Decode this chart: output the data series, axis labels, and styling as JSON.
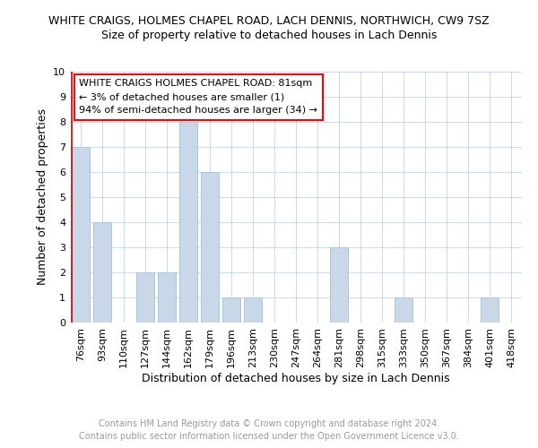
{
  "title": "WHITE CRAIGS, HOLMES CHAPEL ROAD, LACH DENNIS, NORTHWICH, CW9 7SZ",
  "subtitle": "Size of property relative to detached houses in Lach Dennis",
  "xlabel": "Distribution of detached houses by size in Lach Dennis",
  "ylabel": "Number of detached properties",
  "categories": [
    "76sqm",
    "93sqm",
    "110sqm",
    "127sqm",
    "144sqm",
    "162sqm",
    "179sqm",
    "196sqm",
    "213sqm",
    "230sqm",
    "247sqm",
    "264sqm",
    "281sqm",
    "298sqm",
    "315sqm",
    "333sqm",
    "350sqm",
    "367sqm",
    "384sqm",
    "401sqm",
    "418sqm"
  ],
  "values": [
    7,
    4,
    0,
    2,
    2,
    8,
    6,
    1,
    1,
    0,
    0,
    0,
    3,
    0,
    0,
    1,
    0,
    0,
    0,
    1,
    0
  ],
  "bar_color": "#c8d8e8",
  "bar_edge_color": "#b0c4d8",
  "ylim": [
    0,
    10
  ],
  "yticks": [
    0,
    1,
    2,
    3,
    4,
    5,
    6,
    7,
    8,
    9,
    10
  ],
  "annotation_title": "WHITE CRAIGS HOLMES CHAPEL ROAD: 81sqm",
  "annotation_line1": "← 3% of detached houses are smaller (1)",
  "annotation_line2": "94% of semi-detached houses are larger (34) →",
  "footer": "Contains HM Land Registry data © Crown copyright and database right 2024.\nContains public sector information licensed under the Open Government Licence v3.0.",
  "grid_color": "#ccd8e8",
  "background_color": "#ffffff",
  "title_fontsize": 9,
  "subtitle_fontsize": 9,
  "footer_fontsize": 7,
  "ylabel_fontsize": 9,
  "xlabel_fontsize": 9,
  "tick_fontsize": 8,
  "annot_fontsize": 8
}
